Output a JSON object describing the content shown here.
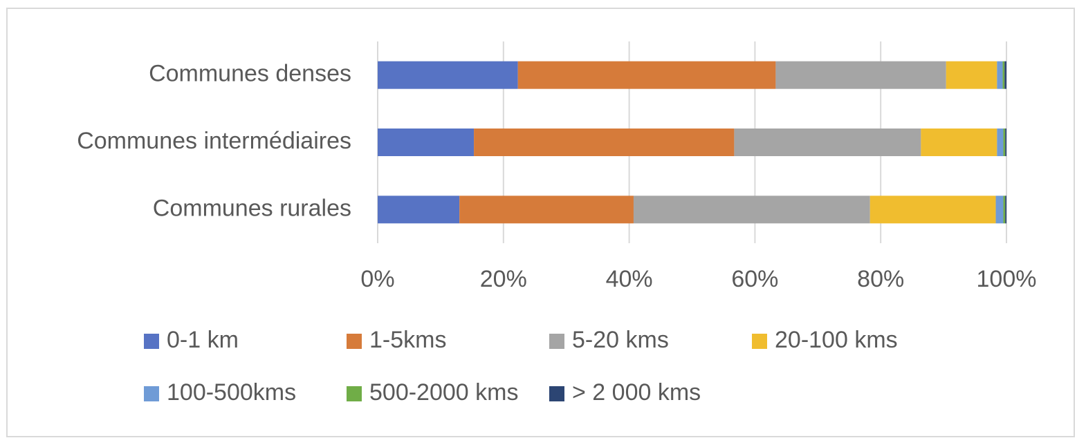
{
  "chart_data": {
    "type": "stacked-barh",
    "categories": [
      "Communes denses",
      "Communes intermédiaires",
      "Communes rurales"
    ],
    "series": [
      {
        "name": "0-1 km",
        "color": "#5773c4",
        "values": [
          22.3,
          15.3,
          13.0
        ]
      },
      {
        "name": "1-5kms",
        "color": "#d67b3a",
        "values": [
          41.0,
          41.4,
          27.7
        ]
      },
      {
        "name": "5-20 kms",
        "color": "#a5a5a5",
        "values": [
          27.1,
          29.7,
          37.6
        ]
      },
      {
        "name": "20-100 kms",
        "color": "#f0bd2f",
        "values": [
          8.1,
          12.1,
          20.0
        ]
      },
      {
        "name": "100-500kms",
        "color": "#6f9bd6",
        "values": [
          0.9,
          1.0,
          1.2
        ]
      },
      {
        "name": "500-2000 kms",
        "color": "#70ad47",
        "values": [
          0.3,
          0.3,
          0.3
        ]
      },
      {
        "name": "> 2 000 kms",
        "color": "#2c4573",
        "values": [
          0.3,
          0.2,
          0.2
        ]
      }
    ],
    "xlim": [
      0,
      100
    ],
    "xticks": [
      {
        "value": 0,
        "label": "0%"
      },
      {
        "value": 20,
        "label": "20%"
      },
      {
        "value": 40,
        "label": "40%"
      },
      {
        "value": 60,
        "label": "60%"
      },
      {
        "value": 80,
        "label": "80%"
      },
      {
        "value": 100,
        "label": "100%"
      }
    ],
    "grid": true,
    "legend": "bottom"
  }
}
